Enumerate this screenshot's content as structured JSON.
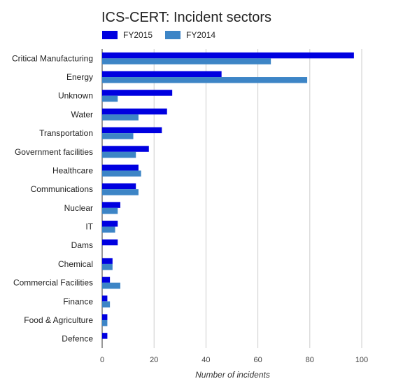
{
  "chart_data": {
    "type": "bar",
    "orientation": "horizontal",
    "title": "ICS-CERT: Incident sectors",
    "xlabel": "Number of incidents",
    "ylabel": "",
    "xlim": [
      0,
      100
    ],
    "xticks": [
      0,
      20,
      40,
      60,
      80,
      100
    ],
    "grid": true,
    "legend_position": "top-left",
    "categories": [
      "Critical Manufacturing",
      "Energy",
      "Unknown",
      "Water",
      "Transportation",
      "Government facilities",
      "Healthcare",
      "Communications",
      "Nuclear",
      "IT",
      "Dams",
      "Chemical",
      "Commercial Facilities",
      "Finance",
      "Food & Agriculture",
      "Defence"
    ],
    "series": [
      {
        "name": "FY2015",
        "color": "#0000e0",
        "values": [
          97,
          46,
          27,
          25,
          23,
          18,
          14,
          13,
          7,
          6,
          6,
          4,
          3,
          2,
          2,
          2
        ]
      },
      {
        "name": "FY2014",
        "color": "#3d85c6",
        "values": [
          65,
          79,
          6,
          14,
          12,
          13,
          15,
          14,
          6,
          5,
          0,
          4,
          7,
          3,
          2,
          0
        ]
      }
    ]
  }
}
